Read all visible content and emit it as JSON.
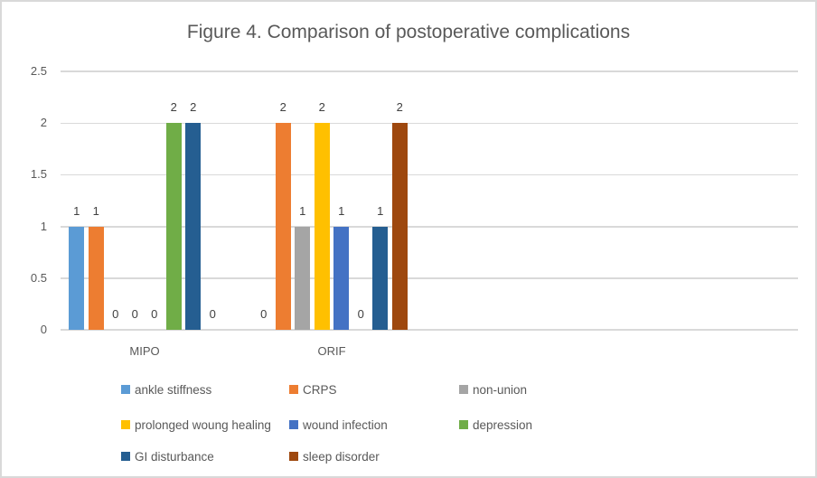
{
  "title": "Figure 4. Comparison of postoperative complications",
  "chart_data": {
    "type": "bar",
    "title": "Figure 4. Comparison of postoperative complications",
    "categories": [
      "MIPO",
      "ORIF"
    ],
    "series": [
      {
        "name": "ankle stiffness",
        "color": "#5B9BD5",
        "values": [
          1,
          0
        ]
      },
      {
        "name": "CRPS",
        "color": "#ED7D31",
        "values": [
          1,
          2
        ]
      },
      {
        "name": "non-union",
        "color": "#A5A5A5",
        "values": [
          0,
          1
        ]
      },
      {
        "name": "prolonged woung healing",
        "color": "#FFC000",
        "values": [
          0,
          2
        ]
      },
      {
        "name": "wound infection",
        "color": "#4472C4",
        "values": [
          0,
          1
        ]
      },
      {
        "name": "depression",
        "color": "#70AD47",
        "values": [
          2,
          0
        ]
      },
      {
        "name": "GI disturbance",
        "color": "#255E91",
        "values": [
          2,
          1
        ]
      },
      {
        "name": "sleep disorder",
        "color": "#9E480E",
        "values": [
          0,
          2
        ]
      }
    ],
    "y_ticks": [
      0,
      0.5,
      1,
      1.5,
      2,
      2.5
    ],
    "ylim": [
      0,
      2.5
    ],
    "data_labels": true,
    "grid": true,
    "legend_position": "bottom"
  },
  "colors": {
    "axis_text": "#595959",
    "data_label_text": "#404040",
    "gridline": "#D9D9D9",
    "frame_border": "#D9D9D9"
  }
}
